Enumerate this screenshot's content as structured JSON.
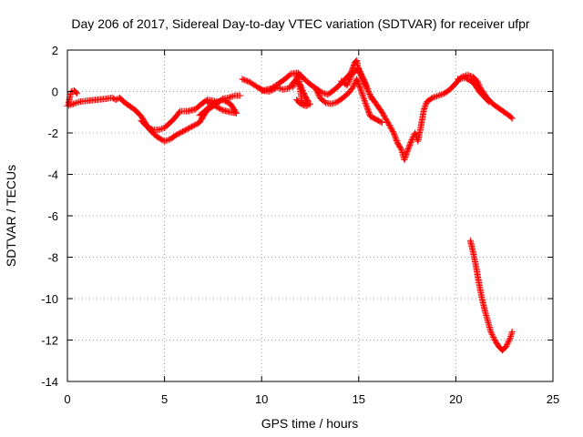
{
  "chart_data": {
    "type": "scatter",
    "title": "Day 206 of 2017, Sidereal Day-to-day VTEC variation (SDTVAR) for receiver ufpr",
    "xlabel": "GPS time / hours",
    "ylabel": "SDTVAR / TECUs",
    "xlim": [
      0,
      25
    ],
    "ylim": [
      -14,
      2
    ],
    "xticks": [
      0,
      5,
      10,
      15,
      20,
      25
    ],
    "yticks": [
      -14,
      -12,
      -10,
      -8,
      -6,
      -4,
      -2,
      0,
      2
    ],
    "grid": true,
    "marker": "+",
    "color": "#ff0000",
    "series": [
      {
        "name": "SDTVAR",
        "segments": [
          [
            [
              0.05,
              -0.6
            ],
            [
              0.2,
              0.0
            ],
            [
              0.35,
              0.05
            ],
            [
              0.5,
              -0.1
            ]
          ],
          [
            [
              0.0,
              -0.7
            ],
            [
              0.3,
              -0.6
            ],
            [
              0.6,
              -0.5
            ],
            [
              1.0,
              -0.45
            ],
            [
              1.5,
              -0.4
            ],
            [
              2.0,
              -0.35
            ],
            [
              2.3,
              -0.3
            ],
            [
              2.5,
              -0.4
            ],
            [
              2.7,
              -0.3
            ],
            [
              2.9,
              -0.5
            ],
            [
              3.2,
              -0.7
            ],
            [
              3.5,
              -0.9
            ],
            [
              3.8,
              -1.2
            ],
            [
              4.0,
              -1.5
            ],
            [
              4.2,
              -1.8
            ],
            [
              4.5,
              -2.1
            ],
            [
              4.8,
              -2.3
            ],
            [
              5.0,
              -2.4
            ],
            [
              5.3,
              -2.3
            ],
            [
              5.6,
              -2.1
            ],
            [
              6.0,
              -1.9
            ],
            [
              6.4,
              -1.7
            ],
            [
              6.8,
              -1.5
            ],
            [
              7.0,
              -1.2
            ],
            [
              7.2,
              -0.9
            ],
            [
              7.5,
              -0.7
            ],
            [
              7.8,
              -0.5
            ],
            [
              8.0,
              -0.35
            ],
            [
              8.3,
              -0.3
            ],
            [
              8.6,
              -0.2
            ],
            [
              8.9,
              -0.2
            ]
          ],
          [
            [
              3.8,
              -1.4
            ],
            [
              4.1,
              -1.7
            ],
            [
              4.4,
              -1.85
            ],
            [
              4.7,
              -1.85
            ],
            [
              5.0,
              -1.75
            ],
            [
              5.3,
              -1.5
            ],
            [
              5.6,
              -1.2
            ],
            [
              5.8,
              -0.95
            ],
            [
              6.2,
              -0.95
            ],
            [
              6.6,
              -0.85
            ],
            [
              6.9,
              -0.6
            ],
            [
              7.2,
              -0.4
            ],
            [
              7.5,
              -0.45
            ],
            [
              7.8,
              -0.5
            ]
          ],
          [
            [
              7.2,
              -0.5
            ],
            [
              7.6,
              -0.7
            ],
            [
              8.0,
              -0.9
            ],
            [
              8.4,
              -1.0
            ],
            [
              8.7,
              -1.05
            ],
            [
              8.4,
              -0.6
            ],
            [
              8.0,
              -0.4
            ],
            [
              7.6,
              -0.55
            ],
            [
              7.3,
              -0.75
            ],
            [
              7.0,
              -1.0
            ],
            [
              6.8,
              -1.15
            ]
          ],
          [
            [
              9.0,
              0.6
            ],
            [
              9.4,
              0.45
            ],
            [
              9.8,
              0.2
            ],
            [
              10.1,
              0.05
            ],
            [
              10.5,
              0.15
            ],
            [
              10.9,
              0.4
            ],
            [
              11.2,
              0.6
            ],
            [
              11.5,
              0.85
            ],
            [
              11.8,
              0.9
            ],
            [
              12.0,
              0.8
            ],
            [
              12.2,
              0.6
            ],
            [
              12.5,
              0.35
            ],
            [
              12.8,
              0.15
            ],
            [
              13.1,
              -0.05
            ],
            [
              13.4,
              -0.15
            ],
            [
              13.7,
              0.05
            ],
            [
              14.0,
              0.3
            ],
            [
              14.3,
              0.6
            ],
            [
              14.6,
              0.9
            ],
            [
              14.8,
              1.4
            ],
            [
              14.9,
              1.5
            ],
            [
              15.0,
              1.0
            ],
            [
              15.2,
              0.6
            ],
            [
              15.4,
              0.2
            ],
            [
              15.6,
              -0.2
            ],
            [
              15.9,
              -0.6
            ],
            [
              16.2,
              -1.0
            ],
            [
              16.5,
              -1.5
            ],
            [
              16.8,
              -2.0
            ],
            [
              17.0,
              -2.5
            ],
            [
              17.2,
              -2.8
            ],
            [
              17.35,
              -3.3
            ],
            [
              17.5,
              -2.9
            ],
            [
              17.7,
              -2.4
            ],
            [
              17.9,
              -2.0
            ],
            [
              18.05,
              -2.4
            ],
            [
              18.2,
              -1.7
            ],
            [
              18.35,
              -0.9
            ],
            [
              18.5,
              -0.5
            ],
            [
              18.8,
              -0.3
            ],
            [
              19.1,
              -0.2
            ],
            [
              19.4,
              -0.1
            ],
            [
              19.7,
              0.1
            ],
            [
              20.0,
              0.4
            ],
            [
              20.3,
              0.7
            ],
            [
              20.6,
              0.8
            ],
            [
              20.9,
              0.7
            ],
            [
              21.1,
              0.5
            ],
            [
              21.3,
              0.1
            ],
            [
              21.6,
              -0.3
            ],
            [
              21.9,
              -0.6
            ],
            [
              22.2,
              -0.8
            ],
            [
              22.5,
              -1.0
            ],
            [
              22.8,
              -1.2
            ],
            [
              22.9,
              -1.3
            ]
          ],
          [
            [
              10.0,
              0.05
            ],
            [
              10.4,
              0.0
            ],
            [
              10.8,
              0.2
            ],
            [
              11.1,
              0.1
            ],
            [
              11.4,
              0.15
            ],
            [
              11.7,
              0.5
            ],
            [
              12.0,
              0.3
            ],
            [
              12.2,
              -0.15
            ],
            [
              12.4,
              -0.5
            ],
            [
              12.0,
              -0.6
            ],
            [
              11.8,
              -0.4
            ]
          ],
          [
            [
              11.6,
              0.2
            ],
            [
              11.9,
              0.9
            ],
            [
              12.0,
              0.0
            ],
            [
              12.1,
              -0.65
            ],
            [
              12.3,
              -0.7
            ],
            [
              12.5,
              -0.6
            ]
          ],
          [
            [
              12.8,
              0.1
            ],
            [
              13.0,
              -0.3
            ],
            [
              13.3,
              -0.55
            ],
            [
              13.6,
              -0.6
            ],
            [
              13.9,
              -0.5
            ],
            [
              14.2,
              -0.3
            ],
            [
              14.5,
              -0.05
            ],
            [
              14.7,
              0.2
            ],
            [
              14.9,
              0.6
            ],
            [
              15.1,
              0.1
            ],
            [
              15.4,
              -0.7
            ],
            [
              15.6,
              -1.2
            ],
            [
              15.9,
              -1.35
            ],
            [
              16.2,
              -1.5
            ]
          ],
          [
            [
              14.1,
              0.5
            ],
            [
              14.4,
              0.3
            ],
            [
              14.7,
              0.9
            ],
            [
              15.0,
              1.1
            ],
            [
              15.3,
              0.5
            ],
            [
              15.5,
              0.0
            ],
            [
              15.7,
              -0.4
            ]
          ],
          [
            [
              20.1,
              0.6
            ],
            [
              20.5,
              0.65
            ],
            [
              20.8,
              0.5
            ],
            [
              21.0,
              0.3
            ],
            [
              21.2,
              0.0
            ],
            [
              21.4,
              -0.2
            ],
            [
              21.7,
              -0.5
            ]
          ],
          [
            [
              20.75,
              -7.2
            ],
            [
              20.9,
              -7.8
            ],
            [
              21.05,
              -8.5
            ],
            [
              21.2,
              -9.3
            ],
            [
              21.35,
              -10.0
            ],
            [
              21.5,
              -10.6
            ],
            [
              21.65,
              -11.1
            ],
            [
              21.8,
              -11.6
            ],
            [
              22.0,
              -12.0
            ],
            [
              22.2,
              -12.3
            ],
            [
              22.4,
              -12.5
            ],
            [
              22.6,
              -12.3
            ],
            [
              22.8,
              -11.9
            ],
            [
              22.9,
              -11.6
            ]
          ]
        ]
      }
    ]
  }
}
